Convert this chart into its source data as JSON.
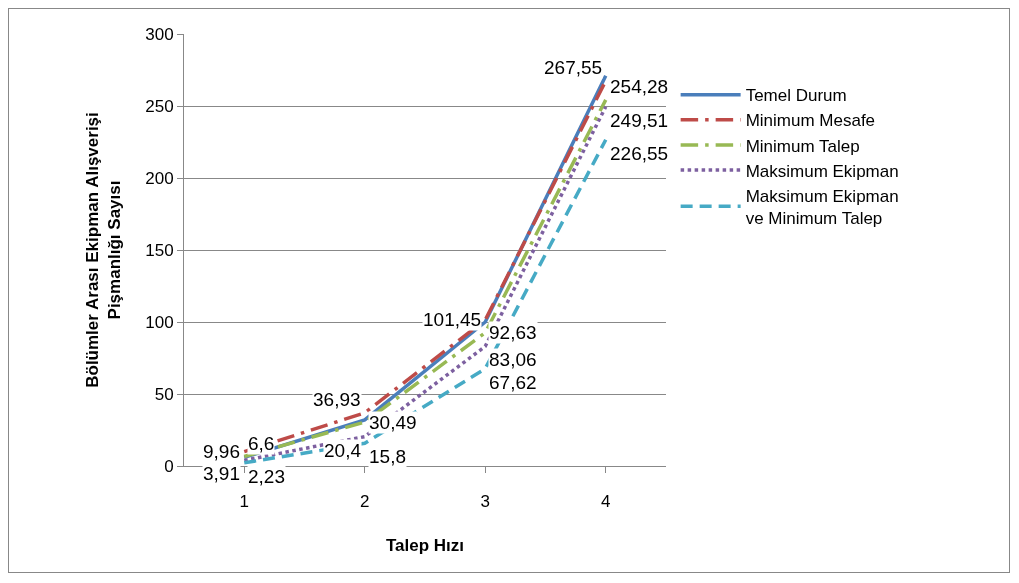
{
  "chart_data": {
    "type": "line",
    "xlabel": "Talep Hızı",
    "ylabel": "Bölümler Arası Ekipman Alışverişi\nPişmanlığı Sayısı",
    "categories": [
      "1",
      "2",
      "3",
      "4"
    ],
    "series": [
      {
        "name": "Temel Durum",
        "color": "#4a7ebb",
        "line_style": "solid",
        "values": [
          6,
          32,
          100,
          271
        ]
      },
      {
        "name": "Minimum Mesafe",
        "color": "#be4b48",
        "line_style": "dashdot",
        "values": [
          9.96,
          36.93,
          101.45,
          267.55
        ],
        "value_labels": [
          "9,96",
          "36,93",
          "101,45",
          "267,55"
        ]
      },
      {
        "name": "Minimum Talep",
        "color": "#98b954",
        "line_style": "dashdot",
        "values": [
          6.6,
          30.49,
          92.63,
          254.28
        ],
        "value_labels": [
          "6,6",
          "30,49",
          "92,63",
          "254,28"
        ]
      },
      {
        "name": "Maksimum Ekipman",
        "color": "#7d60a0",
        "line_style": "dotted",
        "values": [
          3.91,
          20.4,
          83.06,
          249.51
        ],
        "value_labels": [
          "3,91",
          "20,4",
          "83,06",
          "249,51"
        ]
      },
      {
        "name": "Maksimum Ekipman\nve Minimum Talep",
        "color": "#46aac5",
        "line_style": "dashed",
        "values": [
          2.23,
          15.8,
          67.62,
          226.55
        ],
        "value_labels": [
          "2,23",
          "15,8",
          "67,62",
          "226,55"
        ]
      }
    ],
    "ylim": [
      0,
      300
    ],
    "yticks": [
      0,
      50,
      100,
      150,
      200,
      250,
      300
    ],
    "grid": "y",
    "legend": "right",
    "marker": "none"
  }
}
